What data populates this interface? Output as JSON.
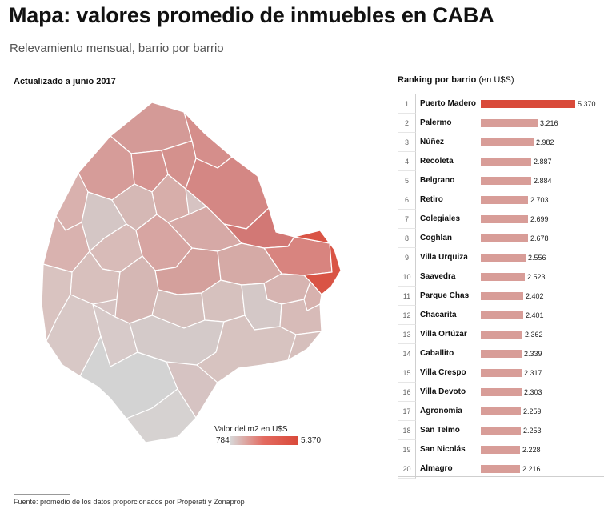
{
  "header": {
    "title": "Mapa: valores promedio de inmuebles en CABA",
    "subtitle": "Relevamiento mensual, barrio por barrio"
  },
  "map": {
    "caption": "Actualizado a junio 2017",
    "legend": {
      "title": "Valor del m2 en U$S",
      "min_label": "784",
      "max_label": "5.370",
      "color_min": "#d7d7d7",
      "color_max": "#d94a3a"
    }
  },
  "ranking": {
    "title_bold": "Ranking por barrio",
    "title_unit": "(en U$S)"
  },
  "chart_data": {
    "type": "bar",
    "orientation": "horizontal",
    "xlim": [
      0,
      5370
    ],
    "categories": [
      "Puerto Madero",
      "Palermo",
      "Núñez",
      "Recoleta",
      "Belgrano",
      "Retiro",
      "Colegiales",
      "Coghlan",
      "Villa Urquiza",
      "Saavedra",
      "Parque Chas",
      "Chacarita",
      "Villa Ortúzar",
      "Caballito",
      "Villa Crespo",
      "Villa Devoto",
      "Agronomía",
      "San Telmo",
      "San Nicolás",
      "Almagro"
    ],
    "ranks": [
      "1",
      "2",
      "3",
      "4",
      "5",
      "6",
      "7",
      "8",
      "9",
      "10",
      "11",
      "12",
      "13",
      "14",
      "15",
      "16",
      "17",
      "18",
      "19",
      "20"
    ],
    "values": [
      5370,
      3216,
      2982,
      2887,
      2884,
      2703,
      2699,
      2678,
      2556,
      2523,
      2402,
      2401,
      2362,
      2339,
      2317,
      2303,
      2259,
      2253,
      2228,
      2216
    ],
    "value_labels": [
      "5.370",
      "3.216",
      "2.982",
      "2.887",
      "2.884",
      "2.703",
      "2.699",
      "2.678",
      "2.556",
      "2.523",
      "2.402",
      "2.401",
      "2.362",
      "2.339",
      "2.317",
      "2.303",
      "2.259",
      "2.253",
      "2.228",
      "2.216"
    ],
    "colors": {
      "top": "#d94a3a",
      "rest": "#d89d98"
    }
  },
  "footer": {
    "source": "Fuente: promedio de los datos proporcionados por Properati y Zonaprop"
  }
}
